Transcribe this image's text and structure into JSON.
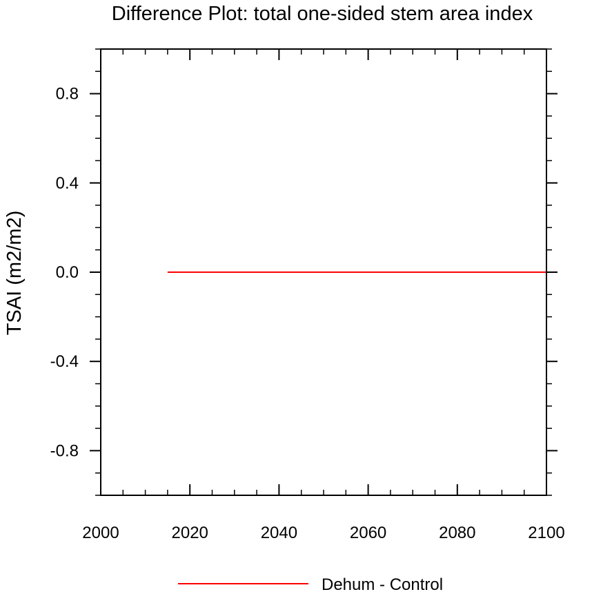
{
  "chart_data": {
    "type": "line",
    "title": "Difference Plot: total one-sided stem area index",
    "xlabel": "",
    "ylabel": "TSAI  (m2/m2)",
    "xlim": [
      2000,
      2100
    ],
    "ylim": [
      -1.0,
      1.0
    ],
    "x_ticks": [
      2000,
      2020,
      2040,
      2060,
      2080,
      2100
    ],
    "x_tick_labels": [
      "2000",
      "2020",
      "2040",
      "2060",
      "2080",
      "2100"
    ],
    "y_ticks": [
      -0.8,
      -0.4,
      0.0,
      0.4,
      0.8
    ],
    "y_tick_labels": [
      "-0.8",
      "-0.4",
      "0.0",
      "0.4",
      "0.8"
    ],
    "x_minor_step": 5,
    "y_minor_step": 0.1,
    "grid": false,
    "legend_position": "bottom-center",
    "series": [
      {
        "name": "Dehum - Control",
        "color": "#ff0000",
        "x": [
          2015,
          2100
        ],
        "y": [
          0.0,
          0.0
        ]
      }
    ]
  }
}
